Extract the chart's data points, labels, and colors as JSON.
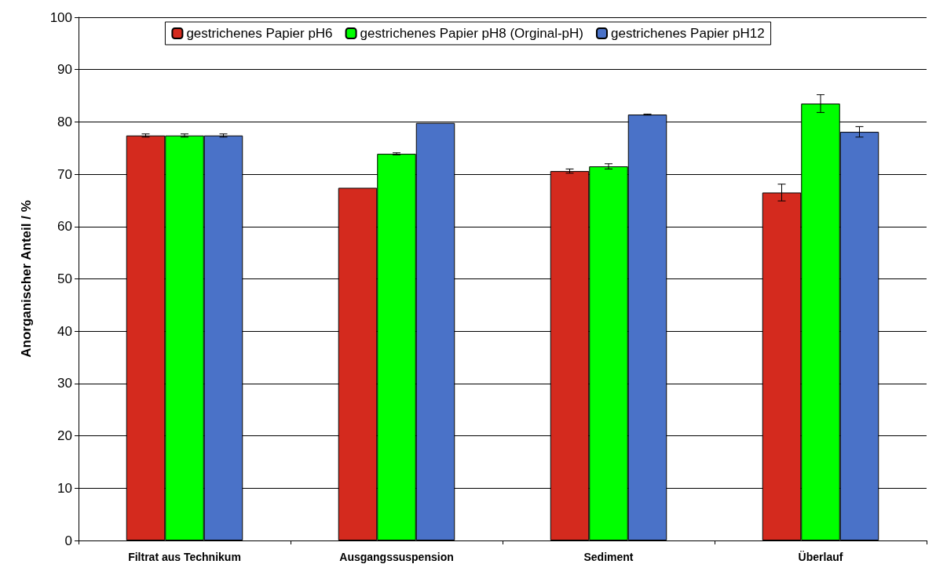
{
  "chart_data": {
    "type": "bar",
    "ylabel": "Anorganischer Anteil / %",
    "categories": [
      "Filtrat aus Technikum",
      "Ausgangssuspension",
      "Sediment",
      "Überlauf"
    ],
    "series": [
      {
        "name": "gestrichenes Papier pH6",
        "color": "#d42a1e",
        "values": [
          77.4,
          67.4,
          70.6,
          66.5
        ],
        "errors": [
          0.3,
          null,
          0.4,
          1.6
        ]
      },
      {
        "name": "gestrichenes Papier pH8 (Orginal-pH)",
        "color": "#00ff00",
        "values": [
          77.4,
          73.9,
          71.5,
          83.5
        ],
        "errors": [
          0.3,
          0.2,
          0.5,
          1.7
        ]
      },
      {
        "name": "gestrichenes Papier pH12",
        "color": "#4a72c8",
        "values": [
          77.4,
          79.8,
          81.4,
          78.1
        ],
        "errors": [
          0.3,
          null,
          0.1,
          1.0
        ]
      }
    ],
    "ylim": [
      0,
      100
    ],
    "yticks": [
      0,
      10,
      20,
      30,
      40,
      50,
      60,
      70,
      80,
      90,
      100
    ],
    "grid": "y",
    "legend": "top"
  }
}
